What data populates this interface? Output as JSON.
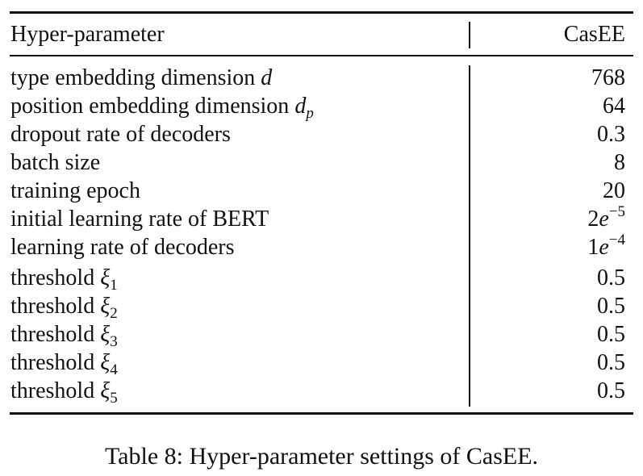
{
  "table": {
    "header": {
      "param": "Hyper-parameter",
      "value": "CasEE"
    },
    "rows": [
      {
        "label": "type embedding dimension ",
        "sym": "d",
        "sub": "",
        "value": "768"
      },
      {
        "label": "position embedding dimension ",
        "sym": "d",
        "sub": "p",
        "value": "64"
      },
      {
        "label": "dropout rate of decoders",
        "value": "0.3"
      },
      {
        "label": "batch size",
        "value": "8"
      },
      {
        "label": "training epoch",
        "value": "20"
      },
      {
        "label": "initial learning rate of BERT",
        "value_base": "2",
        "value_e": "e",
        "value_exp": "−5"
      },
      {
        "label": "learning rate of decoders",
        "value_base": "1",
        "value_e": "e",
        "value_exp": "−4"
      },
      {
        "label": "threshold ",
        "sym": "ξ",
        "sub": "1",
        "value": "0.5"
      },
      {
        "label": "threshold ",
        "sym": "ξ",
        "sub": "2",
        "value": "0.5"
      },
      {
        "label": "threshold ",
        "sym": "ξ",
        "sub": "3",
        "value": "0.5"
      },
      {
        "label": "threshold ",
        "sym": "ξ",
        "sub": "4",
        "value": "0.5"
      },
      {
        "label": "threshold ",
        "sym": "ξ",
        "sub": "5",
        "value": "0.5"
      }
    ]
  },
  "caption": "Table 8: Hyper-parameter settings of CasEE."
}
